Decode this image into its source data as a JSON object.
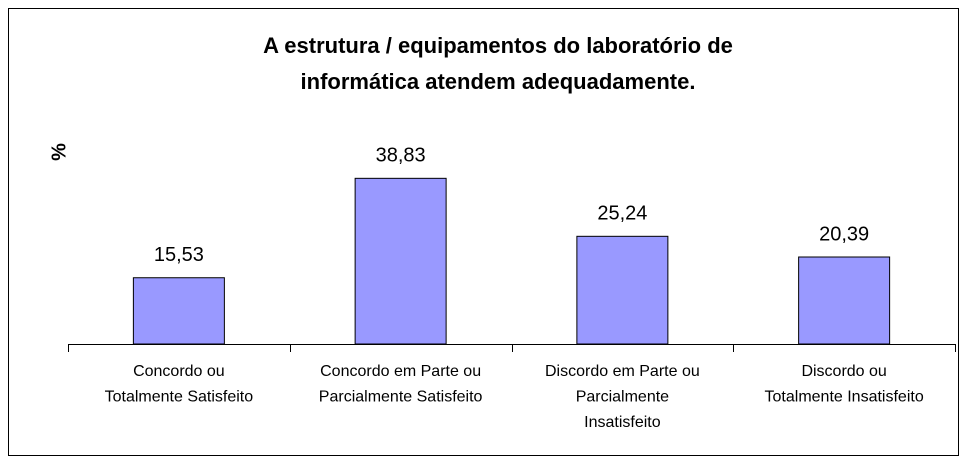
{
  "chart_data": {
    "type": "bar",
    "title": [
      "A estrutura / equipamentos do laboratório de",
      "informática atendem adequadamente."
    ],
    "y_label": "%",
    "categories": [
      [
        "Concordo ou",
        "Totalmente Satisfeito"
      ],
      [
        "Concordo em Parte ou",
        "Parcialmente Satisfeito"
      ],
      [
        "Discordo em Parte ou",
        "Parcialmente",
        "Insatisfeito"
      ],
      [
        "Discordo ou",
        "Totalmente Insatisfeito"
      ]
    ],
    "values": [
      15.53,
      38.83,
      25.24,
      20.39
    ],
    "value_labels": [
      "15,53",
      "38,83",
      "25,24",
      "20,39"
    ],
    "color": "#9999ff",
    "ylim": [
      0,
      45
    ],
    "grid": false
  }
}
